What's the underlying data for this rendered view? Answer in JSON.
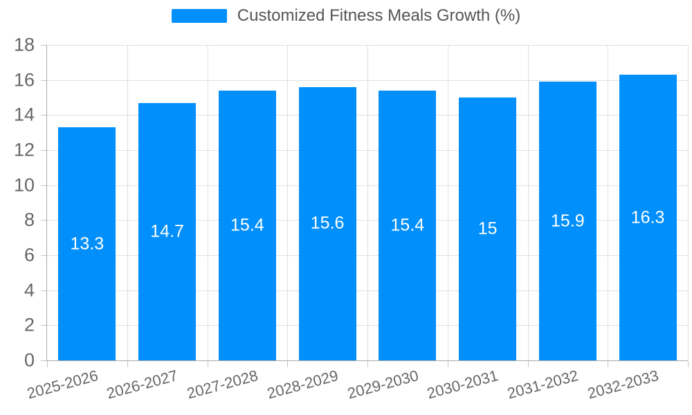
{
  "chart_data": {
    "type": "bar",
    "title": "",
    "categories": [
      "2025-2026",
      "2026-2027",
      "2027-2028",
      "2028-2029",
      "2029-2030",
      "2030-2031",
      "2031-2032",
      "2032-2033"
    ],
    "series": [
      {
        "name": "Customized Fitness Meals Growth (%)",
        "values": [
          13.3,
          14.7,
          15.4,
          15.6,
          15.4,
          15,
          15.9,
          16.3
        ]
      }
    ],
    "xlabel": "",
    "ylabel": "",
    "ylim": [
      0,
      18
    ],
    "yticks": [
      0,
      2,
      4,
      6,
      8,
      10,
      12,
      14,
      16,
      18
    ],
    "grid": true,
    "legend_position": "top",
    "bar_color": "#008FFB",
    "data_labels_shown": true
  },
  "legend": {
    "label": "Customized Fitness Meals Growth (%)",
    "marker_color": "#008FFB"
  },
  "colors": {
    "bar": "#008FFB",
    "data_label_text": "#FFFFFF",
    "axis_label_text": "#666666",
    "legend_text": "#545454",
    "grid_line": "#E0E0E0",
    "axis_line": "#A9A9A9",
    "tick_line": "#C4C4C4",
    "background": "#FFFFFF"
  }
}
